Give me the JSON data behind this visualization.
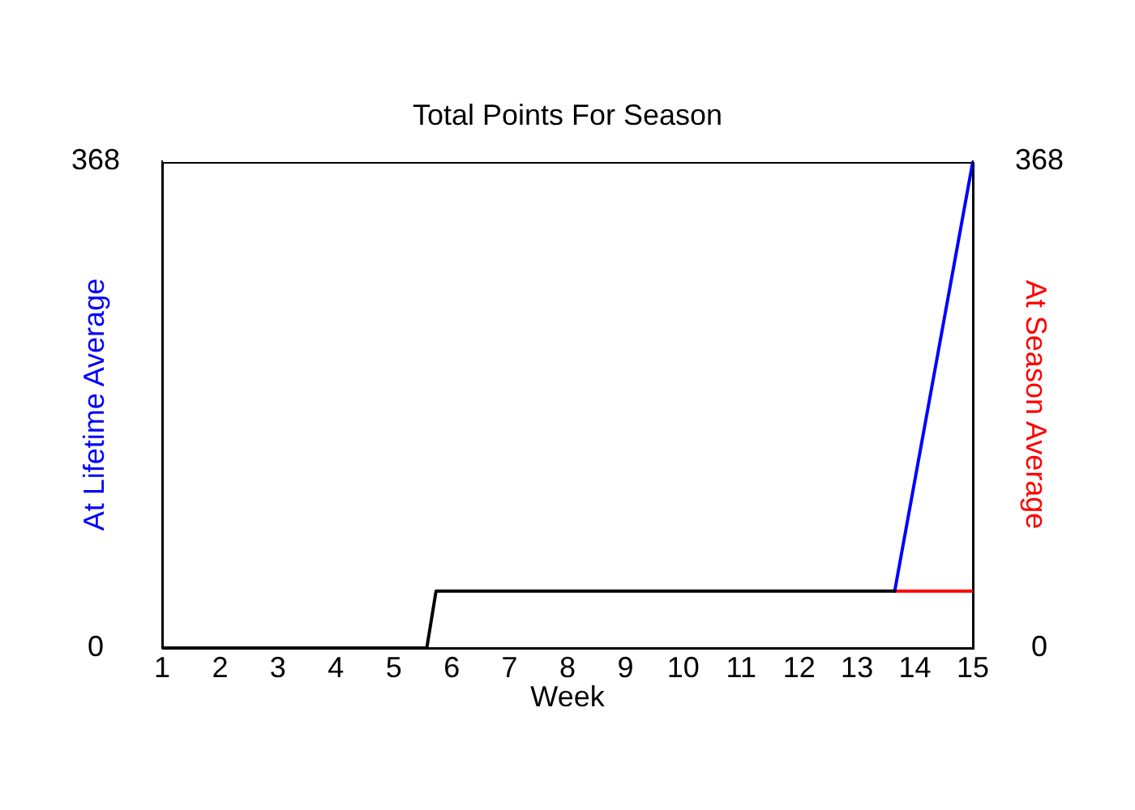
{
  "chart_data": {
    "type": "line",
    "title": "Total Points For Season",
    "xlabel": "Week",
    "xlim": [
      1,
      15
    ],
    "xticks": [
      1,
      2,
      3,
      4,
      5,
      6,
      7,
      8,
      9,
      10,
      11,
      12,
      13,
      14,
      15
    ],
    "ylim": [
      0,
      368
    ],
    "yticks": [
      0,
      368
    ],
    "y2lim": [
      0,
      368
    ],
    "y2ticks": [
      0,
      368
    ],
    "series": [
      {
        "color": "#000000",
        "x": [
          1,
          5.57,
          5.73,
          13.65
        ],
        "values": [
          0,
          0,
          43,
          43
        ]
      },
      {
        "name": "At Lifetime Average",
        "color": "#0000ff",
        "x": [
          13.65,
          15
        ],
        "values": [
          43,
          368
        ]
      },
      {
        "name": "At Season Average",
        "color": "#ff0000",
        "axis": "y2",
        "x": [
          13.65,
          15
        ],
        "values": [
          43,
          43
        ]
      }
    ]
  }
}
